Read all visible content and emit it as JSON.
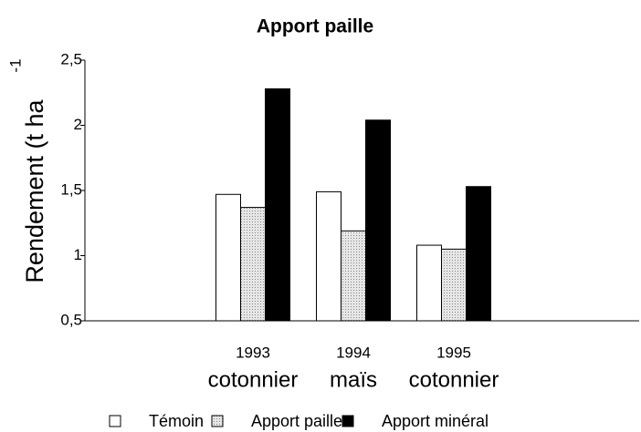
{
  "chart_data": {
    "type": "bar",
    "title": "Apport paille",
    "ylabel": {
      "text": "Rendement (t ha",
      "sup": "-1"
    },
    "categories": [
      null,
      "1993",
      "1994",
      "1995",
      null
    ],
    "subcategories": [
      null,
      "cotonnier",
      "maïs",
      "cotonnier",
      null
    ],
    "series": [
      {
        "name": "Témoin",
        "color": "#ffffff",
        "values": [
          null,
          1.47,
          1.49,
          1.08,
          null
        ]
      },
      {
        "name": "Apport paille",
        "color": "#cfcfcf",
        "values": [
          null,
          1.37,
          1.19,
          1.05,
          null
        ]
      },
      {
        "name": "Apport minéral",
        "color": "#000000",
        "values": [
          null,
          2.28,
          2.04,
          1.53,
          null
        ]
      }
    ],
    "ylim": [
      0.5,
      2.5
    ],
    "yticks": [
      {
        "value": 0.5,
        "label": "0,5"
      },
      1,
      {
        "value": 1.5,
        "label": "1,5"
      },
      2,
      {
        "value": 2.5,
        "label": "2,5"
      }
    ],
    "grid": false,
    "legend": "bottom"
  }
}
